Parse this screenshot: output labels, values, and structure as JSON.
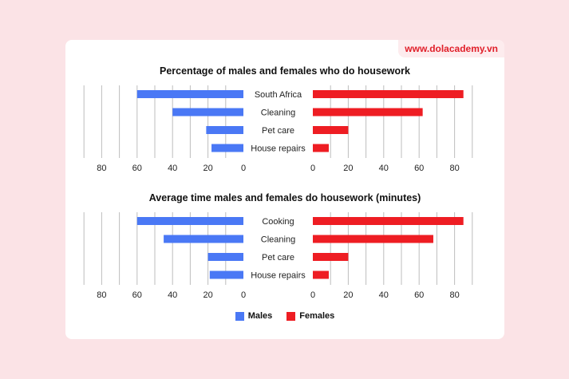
{
  "watermark": "www.dolacademy.vn",
  "colors": {
    "males": "#4a78f5",
    "females": "#ee1d23",
    "grid": "#bdbdbd"
  },
  "legend": {
    "males": "Males",
    "females": "Females"
  },
  "chart_data": [
    {
      "type": "bar",
      "title": "Percentage of males and females who do housework",
      "categories": [
        "South Africa",
        "Cleaning",
        "Pet care",
        "House repairs"
      ],
      "series": [
        {
          "name": "Males",
          "values": [
            60,
            40,
            21,
            18
          ]
        },
        {
          "name": "Females",
          "values": [
            85,
            62,
            20,
            9
          ]
        }
      ],
      "xticks": [
        "80",
        "60",
        "40",
        "20",
        "0",
        "0",
        "20",
        "40",
        "60",
        "80"
      ],
      "xlim": [
        0,
        90
      ],
      "grid": true
    },
    {
      "type": "bar",
      "title": "Average time males and females do housework (minutes)",
      "categories": [
        "Cooking",
        "Cleaning",
        "Pet care",
        "House repairs"
      ],
      "series": [
        {
          "name": "Males",
          "values": [
            60,
            45,
            20,
            19
          ]
        },
        {
          "name": "Females",
          "values": [
            85,
            68,
            20,
            9
          ]
        }
      ],
      "xticks": [
        "80",
        "60",
        "40",
        "20",
        "0",
        "0",
        "20",
        "40",
        "60",
        "80"
      ],
      "xlim": [
        0,
        90
      ],
      "grid": true
    }
  ]
}
